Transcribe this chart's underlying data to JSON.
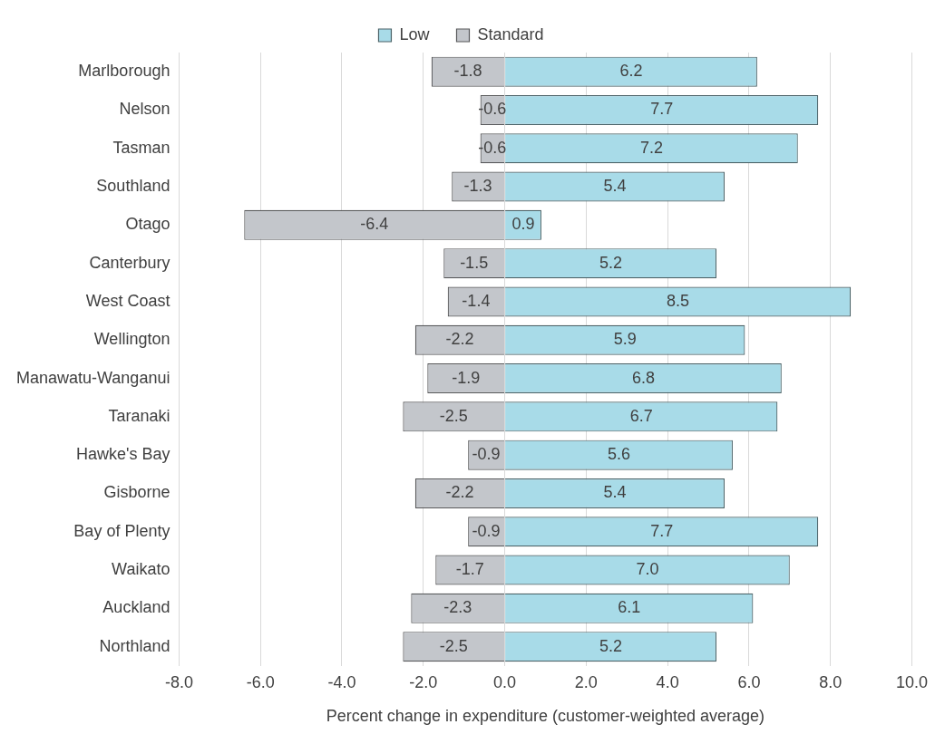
{
  "chart_data": {
    "type": "bar",
    "orientation": "horizontal",
    "stacked": true,
    "xlabel": "Percent change in expenditure (customer-weighted average)",
    "categories": [
      "Marlborough",
      "Nelson",
      "Tasman",
      "Southland",
      "Otago",
      "Canterbury",
      "West Coast",
      "Wellington",
      "Manawatu-Wanganui",
      "Taranaki",
      "Hawke's Bay",
      "Gisborne",
      "Bay of Plenty",
      "Waikato",
      "Auckland",
      "Northland"
    ],
    "series": [
      {
        "name": "Low",
        "color": "#a8dbe8",
        "values": [
          6.2,
          7.7,
          7.2,
          5.4,
          0.9,
          5.2,
          8.5,
          5.9,
          6.8,
          6.7,
          5.6,
          5.4,
          7.7,
          7.0,
          6.1,
          5.2
        ],
        "value_labels": [
          "6.2",
          "7.7",
          "7.2",
          "5.4",
          "0.9",
          "5.2",
          "8.5",
          "5.9",
          "6.8",
          "6.7",
          "5.6",
          "5.4",
          "7.7",
          "7.0",
          "6.1",
          "5.2"
        ]
      },
      {
        "name": "Standard",
        "color": "#c3c6cb",
        "values": [
          -1.8,
          -0.6,
          -0.6,
          -1.3,
          -6.4,
          -1.5,
          -1.4,
          -2.2,
          -1.9,
          -2.5,
          -0.9,
          -2.2,
          -0.9,
          -1.7,
          -2.3,
          -2.5
        ],
        "value_labels": [
          "-1.8",
          "-0.6",
          "-0.6",
          "-1.3",
          "-6.4",
          "-1.5",
          "-1.4",
          "-2.2",
          "-1.9",
          "-2.5",
          "-0.9",
          "-2.2",
          "-0.9",
          "-1.7",
          "-2.3",
          "-2.5"
        ]
      }
    ],
    "xlim": [
      -8,
      10
    ],
    "xticks": [
      {
        "value": -8,
        "label": "-8.0"
      },
      {
        "value": -6,
        "label": "-6.0"
      },
      {
        "value": -4,
        "label": "-4.0"
      },
      {
        "value": -2,
        "label": "-2.0"
      },
      {
        "value": 0,
        "label": "0.0"
      },
      {
        "value": 2,
        "label": "2.0"
      },
      {
        "value": 4,
        "label": "4.0"
      },
      {
        "value": 6,
        "label": "6.0"
      },
      {
        "value": 8,
        "label": "8.0"
      },
      {
        "value": 10,
        "label": "10.0"
      }
    ],
    "grid": "x",
    "legend": "top"
  }
}
